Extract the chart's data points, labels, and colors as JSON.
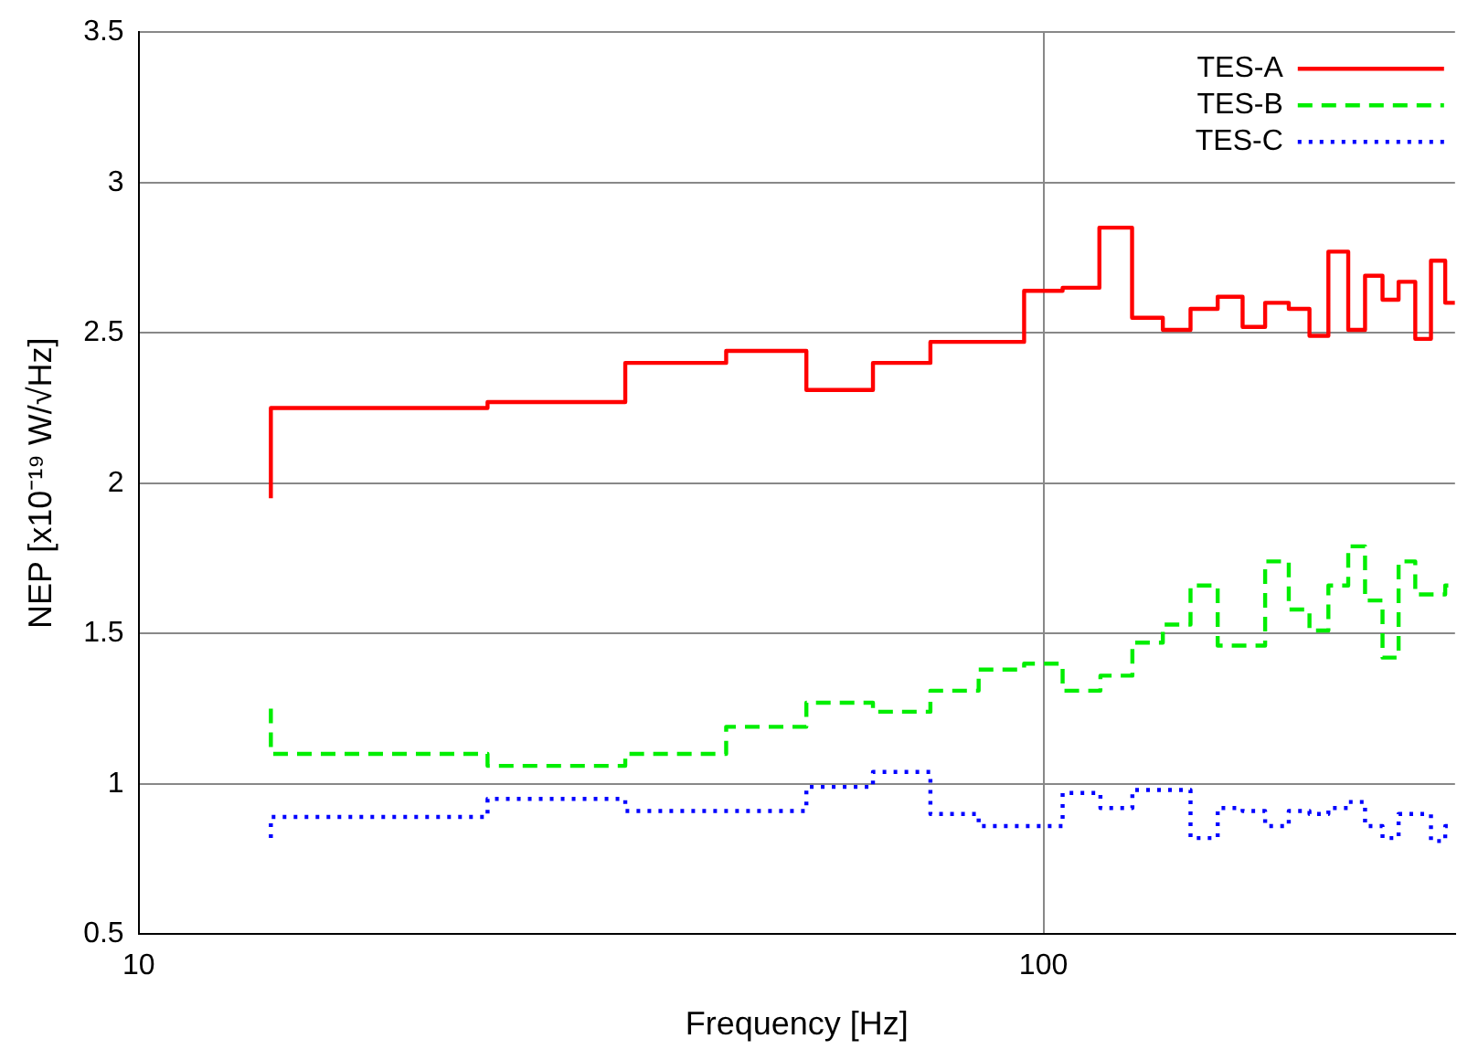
{
  "chart_data": {
    "type": "step",
    "xlabel": "Frequency [Hz]",
    "ylabel": "NEP [x10⁻¹⁹ W/√Hz]",
    "log": "x",
    "xlim": [
      10,
      285
    ],
    "xticks": [
      10,
      100
    ],
    "ylim": [
      0.5,
      3.5
    ],
    "yticks": [
      0.5,
      1,
      1.5,
      2,
      2.5,
      3,
      3.5
    ],
    "grid": true,
    "legend": "top right",
    "marker": "none",
    "series": [
      {
        "name": "TES-A",
        "color": "#ff0000",
        "line_style": "solid",
        "x": [
          14,
          14,
          24.3,
          34.5,
          44.6,
          54.7,
          64.8,
          75,
          95.2,
          105,
          115.3,
          125.3,
          135.5,
          145.4,
          155.8,
          166,
          175.8,
          186.7,
          196.8,
          206.5,
          217.2,
          226.7,
          237,
          246.9,
          257.6,
          268.1,
          278,
          285
        ],
        "values": [
          1.95,
          2.25,
          2.27,
          2.4,
          2.44,
          2.31,
          2.4,
          2.47,
          2.64,
          2.65,
          2.85,
          2.55,
          2.51,
          2.58,
          2.62,
          2.52,
          2.6,
          2.58,
          2.49,
          2.77,
          2.51,
          2.69,
          2.61,
          2.67,
          2.48,
          2.74,
          2.6,
          2.6
        ]
      },
      {
        "name": "TES-B",
        "color": "#00ee00",
        "line_style": "dashed",
        "x": [
          14,
          14,
          24.3,
          34.5,
          44.6,
          54.7,
          64.8,
          75,
          84.8,
          95.2,
          105,
          115.6,
          125.4,
          135.5,
          145.4,
          155.8,
          175.8,
          186.7,
          196.8,
          206.5,
          217.2,
          226.7,
          237,
          246.9,
          257.6,
          278,
          285
        ],
        "values": [
          1.25,
          1.1,
          1.06,
          1.1,
          1.19,
          1.27,
          1.24,
          1.31,
          1.38,
          1.4,
          1.31,
          1.36,
          1.47,
          1.53,
          1.66,
          1.46,
          1.74,
          1.58,
          1.51,
          1.66,
          1.79,
          1.61,
          1.42,
          1.74,
          1.63,
          1.66,
          1.66
        ]
      },
      {
        "name": "TES-C",
        "color": "#0000ff",
        "line_style": "dotted",
        "x": [
          14,
          14,
          24.3,
          34.5,
          54.7,
          64.8,
          75,
          84.8,
          105,
          115.6,
          125.4,
          145.4,
          155.8,
          166,
          175.8,
          186.7,
          196.8,
          206.5,
          217.2,
          226.7,
          237,
          246.9,
          257.6,
          268.1,
          278,
          285
        ],
        "values": [
          0.82,
          0.89,
          0.95,
          0.91,
          0.99,
          1.04,
          0.9,
          0.86,
          0.97,
          0.92,
          0.98,
          0.82,
          0.92,
          0.91,
          0.86,
          0.91,
          0.9,
          0.92,
          0.94,
          0.86,
          0.82,
          0.9,
          0.9,
          0.81,
          0.86,
          0.86
        ]
      }
    ]
  }
}
